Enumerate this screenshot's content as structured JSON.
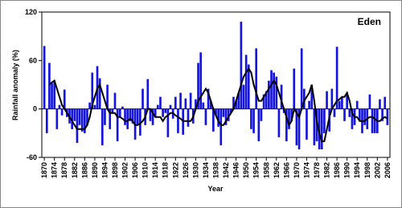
{
  "chart_data": {
    "type": "bar",
    "annotation": "Eden",
    "y_label": "Rainfall anomaly (%)",
    "x_label": "Year",
    "x": [
      1870,
      1871,
      1872,
      1873,
      1874,
      1875,
      1876,
      1877,
      1878,
      1879,
      1880,
      1881,
      1882,
      1883,
      1884,
      1885,
      1886,
      1887,
      1888,
      1889,
      1890,
      1891,
      1892,
      1893,
      1894,
      1895,
      1896,
      1897,
      1898,
      1899,
      1900,
      1901,
      1902,
      1903,
      1904,
      1905,
      1906,
      1907,
      1908,
      1909,
      1910,
      1911,
      1912,
      1913,
      1914,
      1915,
      1916,
      1917,
      1918,
      1919,
      1920,
      1921,
      1922,
      1923,
      1924,
      1925,
      1926,
      1927,
      1928,
      1929,
      1930,
      1931,
      1932,
      1933,
      1934,
      1935,
      1936,
      1937,
      1938,
      1939,
      1940,
      1941,
      1942,
      1943,
      1944,
      1945,
      1946,
      1947,
      1948,
      1949,
      1950,
      1951,
      1952,
      1953,
      1954,
      1955,
      1956,
      1957,
      1958,
      1959,
      1960,
      1961,
      1962,
      1963,
      1964,
      1965,
      1966,
      1967,
      1968,
      1969,
      1970,
      1971,
      1972,
      1973,
      1974,
      1975,
      1976,
      1977,
      1978,
      1979,
      1980,
      1981,
      1982,
      1983,
      1984,
      1985,
      1986,
      1987,
      1988,
      1989,
      1990,
      1991,
      1992,
      1993,
      1994,
      1995,
      1996,
      1997,
      1998,
      1999,
      2000,
      2001,
      2002,
      2003,
      2004,
      2005,
      2006
    ],
    "series": [
      {
        "color": "#1414dc",
        "values": [
          78,
          -30,
          57,
          32,
          35,
          -25,
          5,
          -8,
          24,
          -10,
          -18,
          -25,
          -15,
          -42,
          -20,
          -28,
          -30,
          -20,
          8,
          45,
          5,
          53,
          38,
          -45,
          -20,
          30,
          -25,
          -5,
          20,
          -40,
          -10,
          3,
          -20,
          -25,
          -15,
          -18,
          -38,
          -20,
          -33,
          25,
          -20,
          37,
          -15,
          -20,
          -10,
          5,
          15,
          -10,
          -5,
          -35,
          5,
          -12,
          15,
          -30,
          20,
          -32,
          13,
          -22,
          20,
          -18,
          12,
          57,
          70,
          8,
          -20,
          25,
          10,
          -28,
          -8,
          -22,
          -45,
          -10,
          -20,
          -15,
          -5,
          15,
          10,
          20,
          108,
          30,
          67,
          55,
          -25,
          -30,
          75,
          -40,
          -15,
          18,
          22,
          35,
          48,
          45,
          40,
          -35,
          30,
          -5,
          -40,
          -25,
          -15,
          50,
          -45,
          -50,
          75,
          25,
          -38,
          10,
          30,
          -45,
          -40,
          -50,
          -50,
          -30,
          22,
          -28,
          25,
          -10,
          77,
          10,
          15,
          -15,
          20,
          -10,
          -25,
          -20,
          10,
          -15,
          -30,
          -20,
          -25,
          18,
          -30,
          -30,
          -30,
          12,
          -15,
          15,
          -20
        ]
      },
      {
        "type": "line",
        "color": "#000000",
        "values": [
          null,
          null,
          30,
          33,
          35,
          25,
          15,
          5,
          0,
          -5,
          -10,
          -15,
          -20,
          -25,
          -25,
          -25,
          -25,
          -20,
          -10,
          5,
          15,
          25,
          30,
          20,
          10,
          0,
          -5,
          -5,
          -5,
          -10,
          -10,
          -12,
          -15,
          -15,
          -12,
          -15,
          -20,
          -20,
          -18,
          -15,
          -10,
          0,
          0,
          -5,
          -10,
          -10,
          -10,
          -15,
          -10,
          -8,
          -5,
          -5,
          -8,
          -10,
          -12,
          -15,
          -15,
          -15,
          -15,
          -10,
          0,
          10,
          15,
          20,
          25,
          20,
          10,
          0,
          -8,
          -15,
          -20,
          -20,
          -15,
          -10,
          -5,
          0,
          10,
          20,
          30,
          40,
          45,
          50,
          45,
          30,
          20,
          10,
          10,
          15,
          20,
          25,
          30,
          35,
          30,
          20,
          10,
          0,
          -10,
          -20,
          -15,
          0,
          -5,
          -10,
          0,
          10,
          15,
          20,
          30,
          10,
          -15,
          -30,
          -40,
          -40,
          -25,
          -10,
          0,
          5,
          10,
          12,
          15,
          15,
          20,
          10,
          -5,
          -10,
          -10,
          -15,
          -15,
          -15,
          -12,
          -10,
          -10,
          -12,
          -15,
          -15,
          -12,
          -10,
          -12
        ]
      }
    ],
    "xlim": [
      1869,
      2007
    ],
    "xticks": [
      1870,
      1874,
      1878,
      1882,
      1886,
      1890,
      1894,
      1898,
      1902,
      1906,
      1910,
      1914,
      1918,
      1922,
      1926,
      1930,
      1934,
      1938,
      1942,
      1946,
      1950,
      1954,
      1958,
      1962,
      1966,
      1970,
      1974,
      1978,
      1982,
      1986,
      1990,
      1994,
      1998,
      2002,
      2006
    ],
    "ylim": [
      -60,
      120
    ],
    "yticks": [
      -60,
      0,
      60,
      120
    ],
    "grid": false
  }
}
